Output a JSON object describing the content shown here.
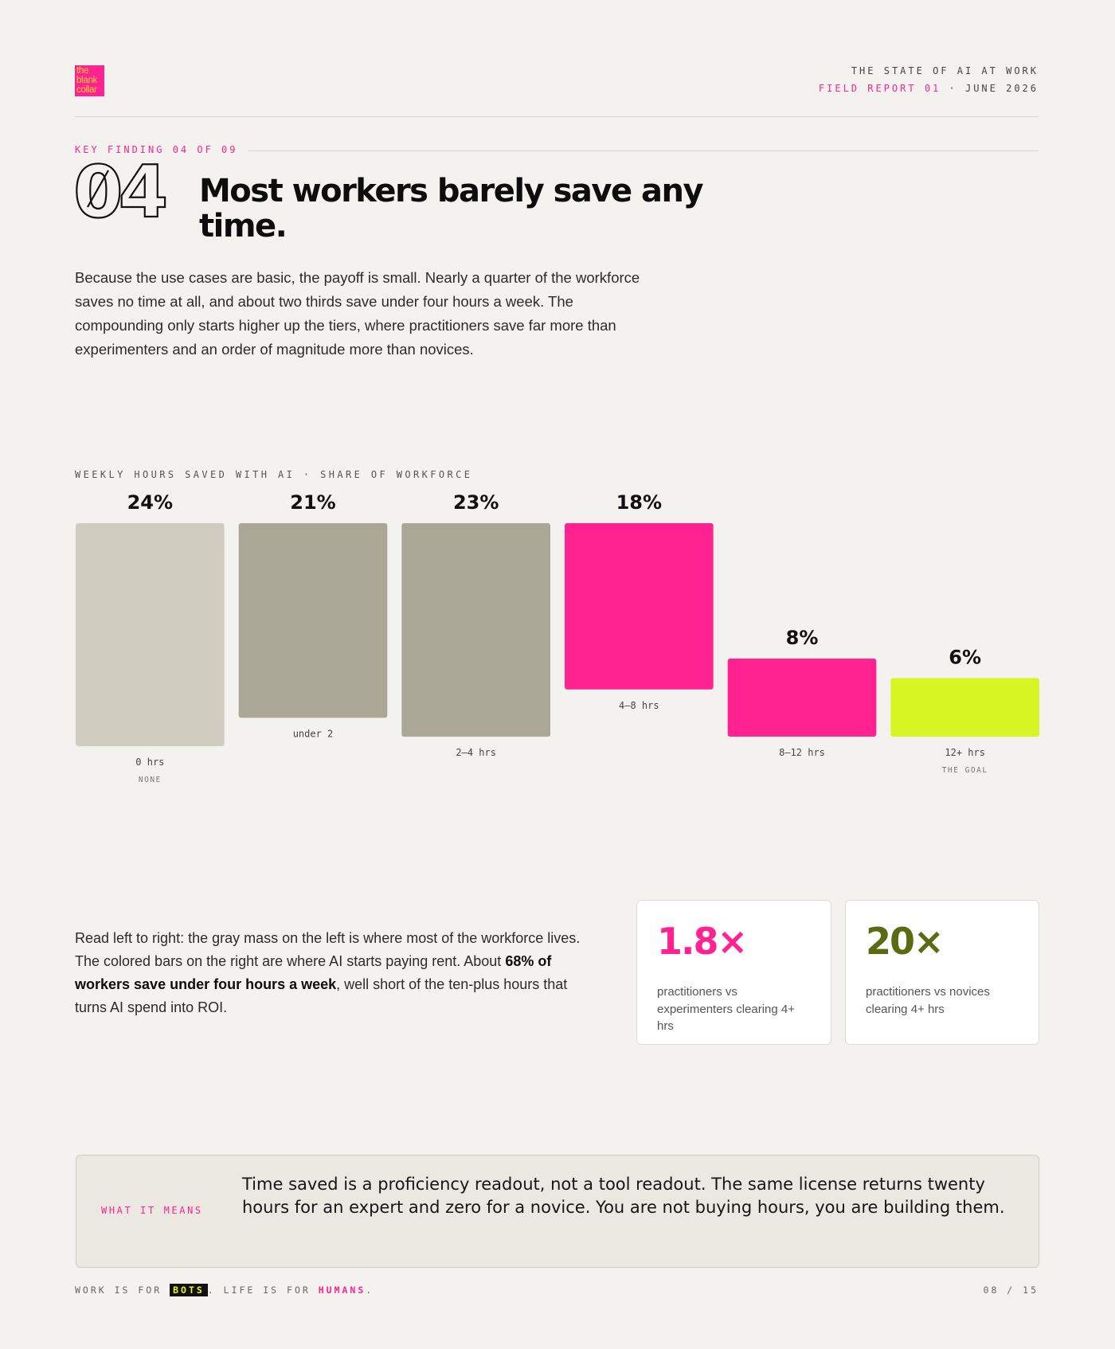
{
  "header": {
    "logo_lines": [
      "the",
      "blank",
      "collar"
    ],
    "report_title": "THE STATE OF AI AT WORK",
    "report_label": "FIELD REPORT 01",
    "report_sep": " · ",
    "report_date": "JUNE 2026"
  },
  "finding": {
    "kicker": "KEY FINDING 04 OF 09",
    "number": "04",
    "headline": "Most workers barely save any time.",
    "intro": "Because the use cases are basic, the payoff is small. Nearly a quarter of the workforce saves no time at all, and about two thirds save under four hours a week. The compounding only starts higher up the tiers, where practitioners save far more than experimenters and an order of magnitude more than novices."
  },
  "chart_data": {
    "type": "bar",
    "title": "WEEKLY HOURS SAVED WITH AI · SHARE OF WORKFORCE",
    "categories": [
      "0 hrs",
      "under 2",
      "2–4 hrs",
      "4–8 hrs",
      "8–12 hrs",
      "12+ hrs"
    ],
    "subtitles": [
      "NONE",
      "",
      "",
      "",
      "",
      "THE GOAL"
    ],
    "values": [
      24,
      21,
      23,
      18,
      8,
      6
    ],
    "value_labels": [
      "24%",
      "21%",
      "23%",
      "18%",
      "8%",
      "6%"
    ],
    "colors": [
      "#d0ccc0",
      "#aba796",
      "#aba796",
      "#ff2290",
      "#ff2290",
      "#d6f523"
    ]
  },
  "explain": {
    "part1": "Read left to right: the gray mass on the left is where most of the workforce lives. The colored bars on the right are where AI starts paying rent. About ",
    "bold": "68% of workers save under four hours a week",
    "part2": ", well short of the ten-plus hours that turns AI spend into ROI."
  },
  "stats": [
    {
      "value": "1.8×",
      "label": "practitioners vs experimenters clearing 4+ hrs",
      "color": "#ff2290"
    },
    {
      "value": "20×",
      "label": "practitioners vs novices clearing 4+ hrs",
      "color": "#5a6b12"
    }
  ],
  "callout": {
    "tag": "WHAT IT MEANS",
    "text": "Time saved is a proficiency readout, not a tool readout. The same license returns twenty hours for an expert and zero for a novice. You are not buying hours, you are building them."
  },
  "footer": {
    "pre": "WORK IS FOR ",
    "bots": "BOTS",
    "mid": ". LIFE IS FOR ",
    "humans": "HUMANS",
    "post": ".",
    "page": "08 / 15"
  }
}
